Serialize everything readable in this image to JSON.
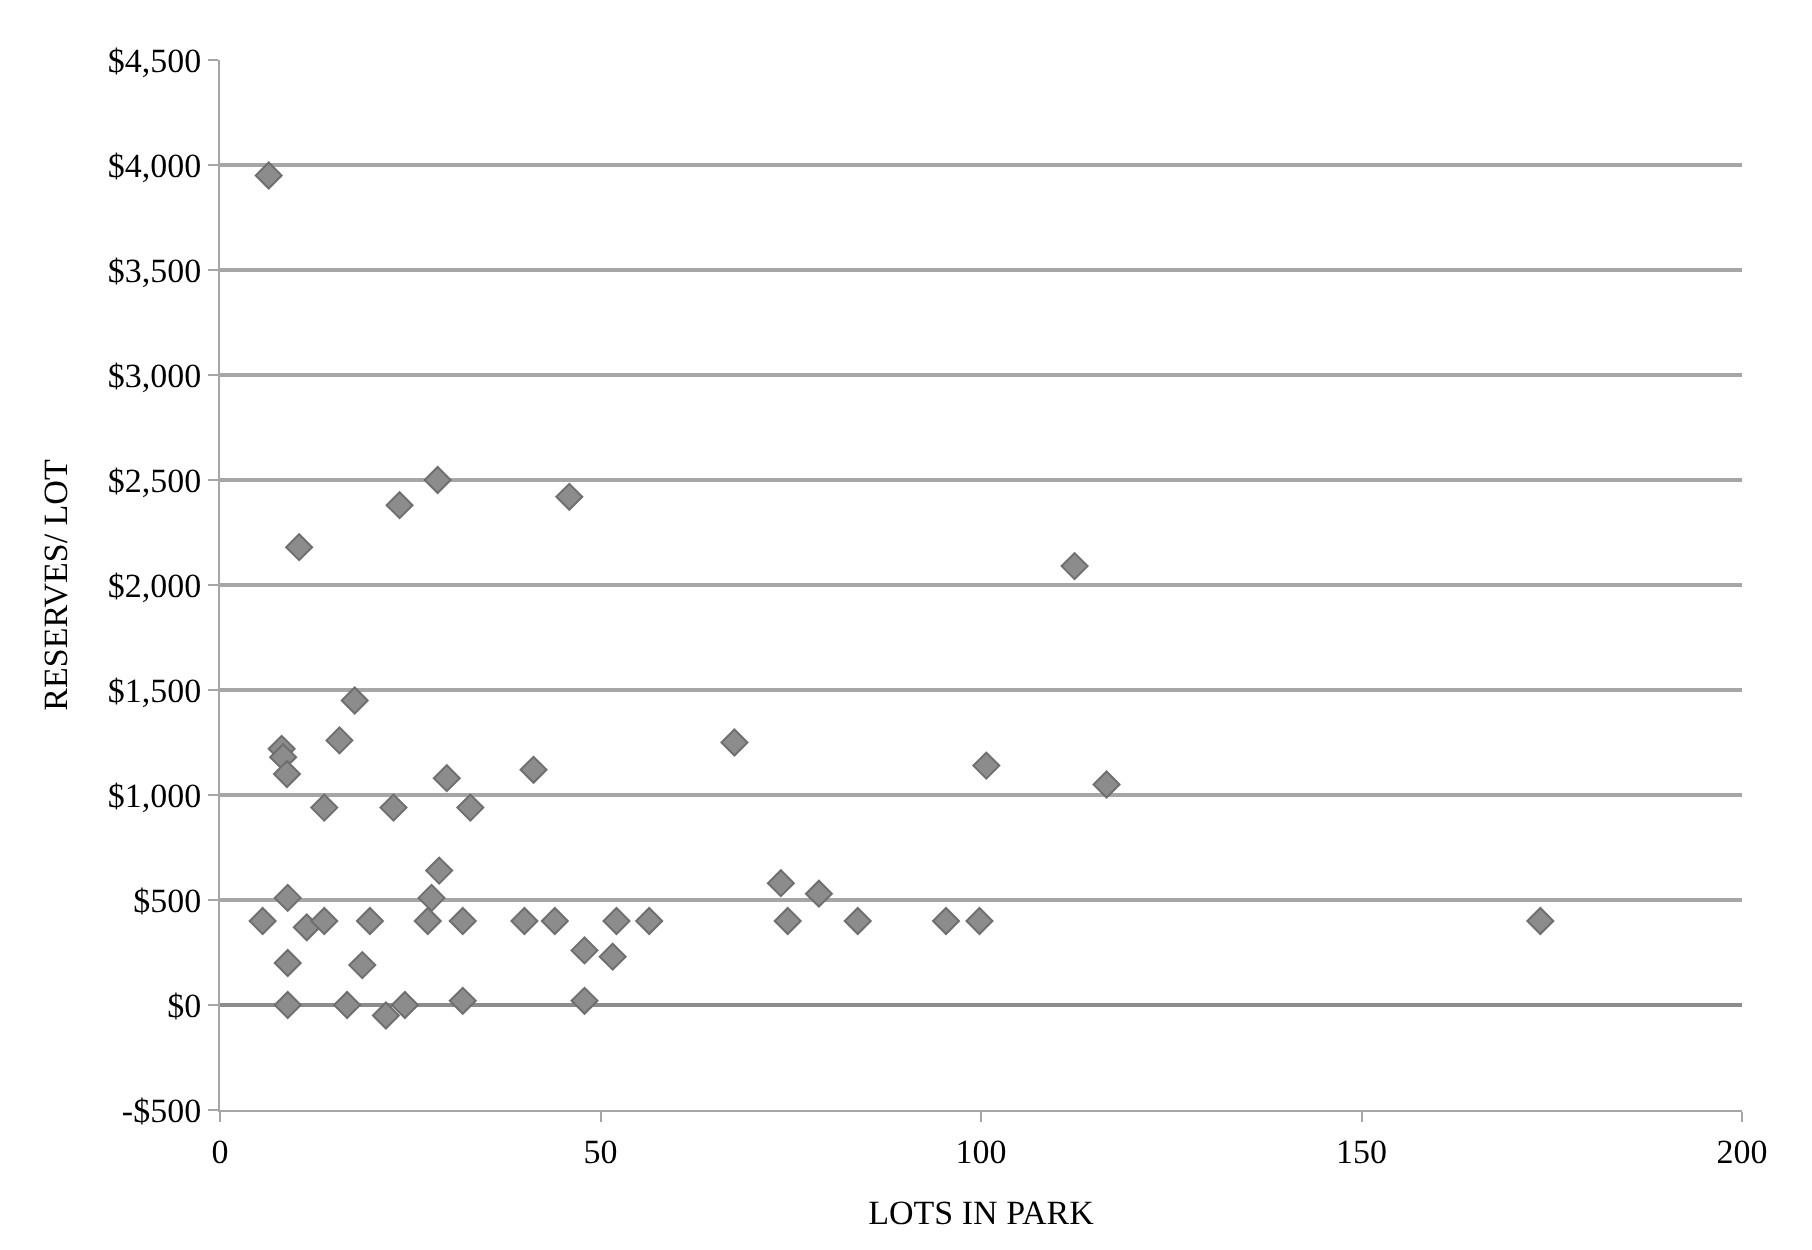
{
  "chart_data": {
    "type": "scatter",
    "xlabel": "LOTS IN PARK",
    "ylabel": "RESERVES/ LOT",
    "x": [
      6.4,
      10.4,
      23.6,
      28.6,
      45.9,
      112.3,
      17.7,
      15.7,
      8.1,
      8.3,
      8.8,
      13.7,
      22.8,
      29.8,
      32.9,
      41.2,
      67.6,
      100.7,
      116.5,
      73.7,
      78.7,
      74.6,
      83.8,
      95.4,
      99.8,
      173.5,
      5.6,
      8.9,
      11.4,
      13.7,
      19.7,
      28.8,
      27.8,
      27.3,
      31.9,
      40,
      44,
      52.1,
      56.4,
      47.9,
      51.6,
      8.9,
      18.7,
      8.9,
      16.7,
      21.8,
      24.3,
      31.9,
      47.9
    ],
    "series": [
      {
        "color": "#8c8c8c",
        "values": [
          3950,
          2180,
          2380,
          2500,
          2420,
          2090,
          1450,
          1260,
          1220,
          1180,
          1100,
          940,
          940,
          1080,
          940,
          1120,
          1250,
          1140,
          1050,
          580,
          530,
          400,
          400,
          400,
          400,
          400,
          400,
          510,
          370,
          400,
          400,
          640,
          510,
          400,
          400,
          400,
          400,
          400,
          400,
          260,
          230,
          200,
          190,
          0,
          0,
          -50,
          0,
          20,
          20
        ]
      }
    ],
    "xlim": [
      0,
      200
    ],
    "xticks": [
      0,
      50,
      100,
      150,
      200
    ],
    "ylim": [
      -500,
      4500
    ],
    "yticks": [
      {
        "value": -500,
        "label": "-$500"
      },
      {
        "value": 0,
        "label": "$0"
      },
      {
        "value": 500,
        "label": "$500"
      },
      {
        "value": 1000,
        "label": "$1,000"
      },
      {
        "value": 1500,
        "label": "$1,500"
      },
      {
        "value": 2000,
        "label": "$2,000"
      },
      {
        "value": 2500,
        "label": "$2,500"
      },
      {
        "value": 3000,
        "label": "$3,000"
      },
      {
        "value": 3500,
        "label": "$3,500"
      },
      {
        "value": 4000,
        "label": "$4,000"
      },
      {
        "value": 4500,
        "label": "$4,500"
      }
    ],
    "grid": "y",
    "marker": "diamond"
  }
}
